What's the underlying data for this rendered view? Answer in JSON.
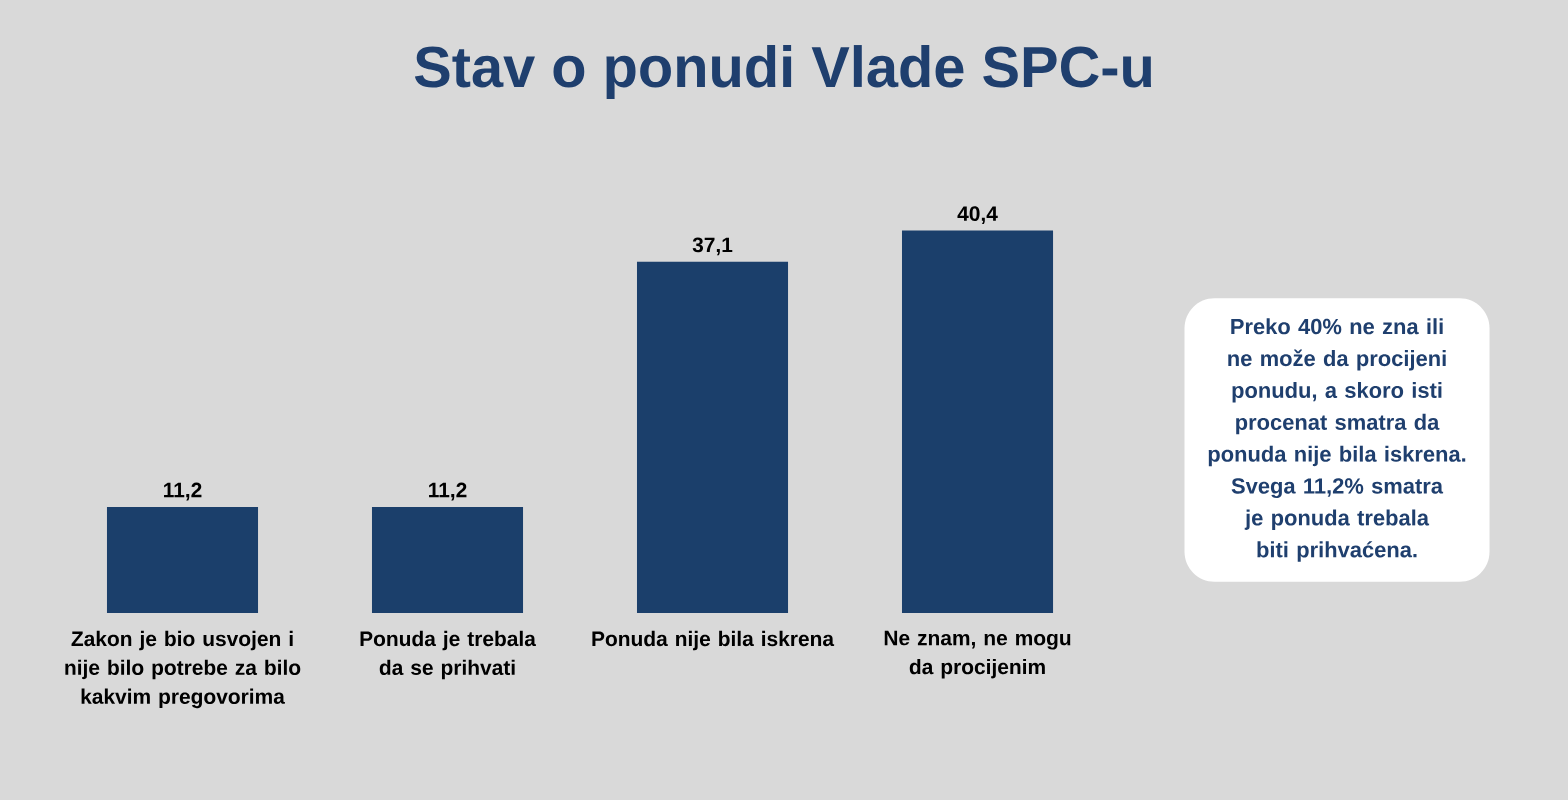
{
  "chart_data": {
    "type": "bar",
    "title": "Stav o ponudi Vlade SPC-u",
    "categories": [
      "Zakon je bio usvojen i nije bilo potrebe za bilo kakvim pregovorima",
      "Ponuda je trebala da se prihvati",
      "Ponuda nije bila iskrena",
      "Ne znam, ne mogu da procijenim"
    ],
    "values": [
      11.2,
      11.2,
      37.1,
      40.4
    ],
    "value_labels": [
      "11,2",
      "11,2",
      "37,1",
      "40,4"
    ],
    "color": "#1b3f6b",
    "annotations": [
      "Preko 40% ne zna ili ne može da procijeni ponudu, a skoro isti procenat smatra da ponuda nije bila iskrena.",
      "Svega 11,2% smatra je ponuda trebala biti prihvaćena."
    ]
  }
}
